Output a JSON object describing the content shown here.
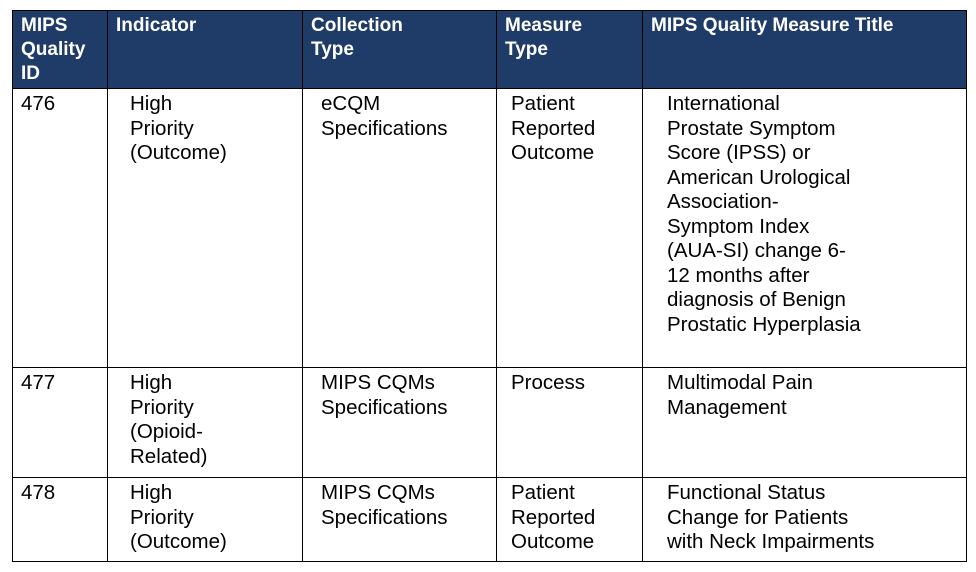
{
  "table": {
    "headers": [
      "MIPS\nQuality\nID",
      "Indicator",
      "Collection\nType",
      "Measure\nType",
      "MIPS Quality Measure Title"
    ],
    "rows": [
      {
        "id": "476",
        "indicator": "High\nPriority\n(Outcome)",
        "collection_type": "eCQM\nSpecifications",
        "measure_type": "Patient\nReported\nOutcome",
        "title": "International\nProstate Symptom\nScore (IPSS) or\nAmerican Urological\nAssociation-\nSymptom Index\n(AUA-SI) change 6-\n12 months after\ndiagnosis of Benign\nProstatic Hyperplasia"
      },
      {
        "id": "477",
        "indicator": "High\nPriority\n(Opioid-\nRelated)",
        "collection_type": "MIPS CQMs\nSpecifications",
        "measure_type": "Process",
        "title": "Multimodal Pain\nManagement"
      },
      {
        "id": "478",
        "indicator": "High\nPriority\n(Outcome)",
        "collection_type": "MIPS CQMs\nSpecifications",
        "measure_type": "Patient\nReported\nOutcome",
        "title": "Functional Status\nChange for Patients\nwith Neck Impairments"
      }
    ]
  }
}
